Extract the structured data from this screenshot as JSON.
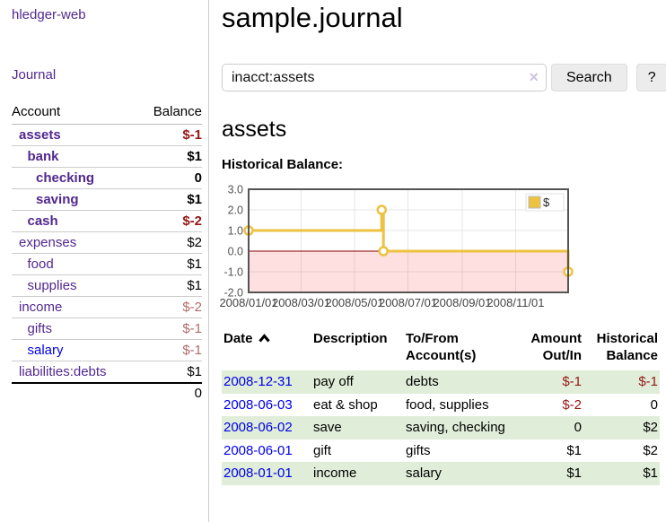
{
  "sidebar": {
    "app_title": "hledger-web",
    "journal_link": "Journal",
    "accounts_table": {
      "headers": {
        "account": "Account",
        "balance": "Balance"
      },
      "rows": [
        {
          "name": "assets",
          "balance": "$-1",
          "indent": 0,
          "bold": true,
          "neg": "strong"
        },
        {
          "name": "bank",
          "balance": "$1",
          "indent": 1,
          "bold": true,
          "neg": "none"
        },
        {
          "name": "checking",
          "balance": "0",
          "indent": 2,
          "bold": true,
          "neg": "none"
        },
        {
          "name": "saving",
          "balance": "$1",
          "indent": 2,
          "bold": true,
          "neg": "none"
        },
        {
          "name": "cash",
          "balance": "$-2",
          "indent": 1,
          "bold": true,
          "neg": "strong"
        },
        {
          "name": "expenses",
          "balance": "$2",
          "indent": 0,
          "bold": false,
          "neg": "none"
        },
        {
          "name": "food",
          "balance": "$1",
          "indent": 1,
          "bold": false,
          "neg": "none"
        },
        {
          "name": "supplies",
          "balance": "$1",
          "indent": 1,
          "bold": false,
          "neg": "none"
        },
        {
          "name": "income",
          "balance": "$-2",
          "indent": 0,
          "bold": false,
          "neg": "muted"
        },
        {
          "name": "gifts",
          "balance": "$-1",
          "indent": 1,
          "bold": false,
          "neg": "muted"
        },
        {
          "name": "salary",
          "balance": "$-1",
          "indent": 1,
          "bold": false,
          "neg": "muted",
          "link_style": "unvisited"
        },
        {
          "name": "liabilities:debts",
          "balance": "$1",
          "indent": 0,
          "bold": false,
          "neg": "none"
        }
      ],
      "total": "0"
    }
  },
  "header": {
    "title": "sample.journal"
  },
  "search": {
    "value": "inacct:assets",
    "clear_icon": "×",
    "button_label": "Search",
    "help_label": "?"
  },
  "account_page": {
    "heading": "assets",
    "chart_label": "Historical Balance:"
  },
  "chart_data": {
    "type": "line",
    "title": "Historical Balance:",
    "step": true,
    "series": [
      {
        "name": "$",
        "color": "#EDC240",
        "points": [
          {
            "date": "2008-01-01",
            "value": 1
          },
          {
            "date": "2008-06-01",
            "value": 2
          },
          {
            "date": "2008-06-03",
            "value": 0
          },
          {
            "date": "2008-12-31",
            "value": -1
          }
        ]
      }
    ],
    "x_range": [
      "2008-01-01",
      "2008-12-31"
    ],
    "x_ticks": [
      {
        "date": "2008-01-01",
        "label": "2008/01/01"
      },
      {
        "date": "2008-03-01",
        "label": "2008/03/01"
      },
      {
        "date": "2008-05-01",
        "label": "2008/05/01"
      },
      {
        "date": "2008-07-01",
        "label": "2008/07/01"
      },
      {
        "date": "2008-09-01",
        "label": "2008/09/01"
      },
      {
        "date": "2008-11-01",
        "label": "2008/11/01"
      }
    ],
    "y_ticks": [
      3.0,
      2.0,
      1.0,
      0.0,
      -1.0,
      -2.0
    ],
    "ylim": [
      -2,
      3
    ],
    "grid": true,
    "legend_label": "$",
    "legend_position": "top-right",
    "zero_line_color": "#8b0000",
    "negative_region_color": "rgba(255,0,0,0.12)",
    "grid_color": "#e6e6e6",
    "border_color": "#545454"
  },
  "register_table": {
    "headers": [
      "Date",
      "Description",
      "To/From Account(s)",
      "Amount Out/In",
      "Historical Balance"
    ],
    "sort_icon": "chevron-up",
    "rows": [
      {
        "date": "2008-12-31",
        "description": "pay off",
        "accounts": "debts",
        "amount": "$-1",
        "balance": "$-1"
      },
      {
        "date": "2008-06-03",
        "description": "eat & shop",
        "accounts": "food, supplies",
        "amount": "$-2",
        "balance": "0"
      },
      {
        "date": "2008-06-02",
        "description": "save",
        "accounts": "saving, checking",
        "amount": "0",
        "balance": "$2"
      },
      {
        "date": "2008-06-01",
        "description": "gift",
        "accounts": "gifts",
        "amount": "$1",
        "balance": "$2"
      },
      {
        "date": "2008-01-01",
        "description": "income",
        "accounts": "salary",
        "amount": "$1",
        "balance": "$1"
      }
    ]
  }
}
